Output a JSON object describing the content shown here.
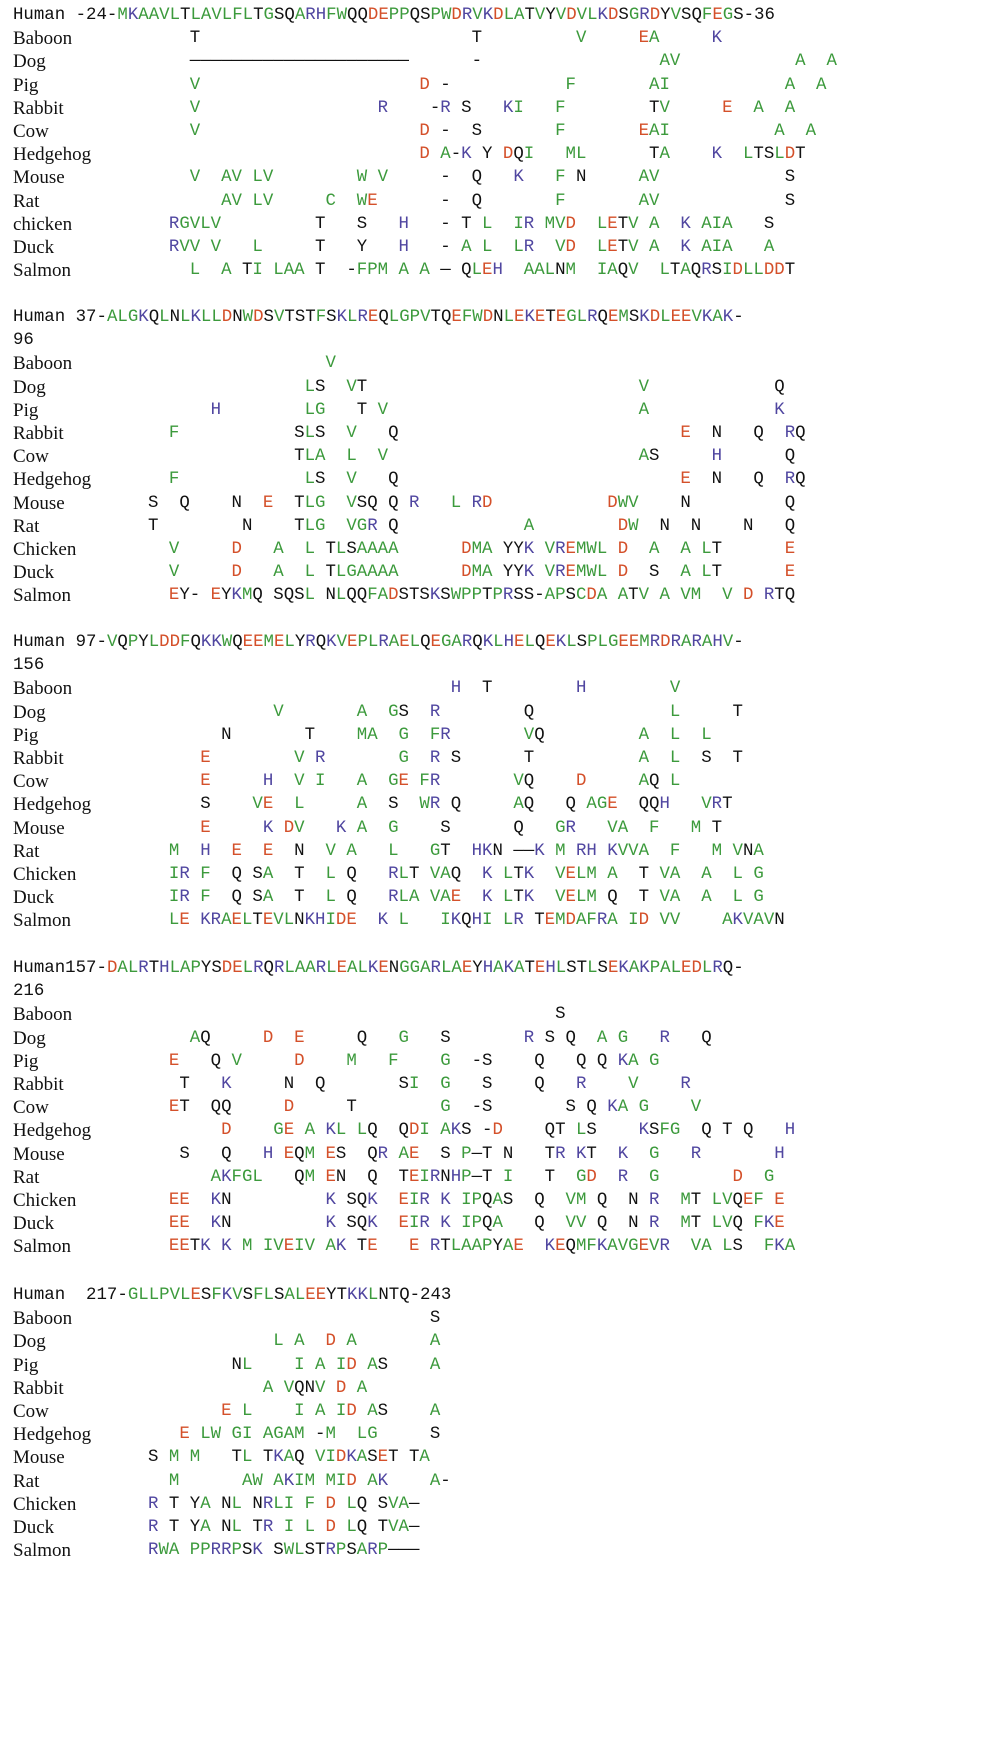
{
  "colors": {
    "hydrophobic": "#3c9a3c",
    "acidic": "#d4502a",
    "basic": "#5046a0",
    "other": "#111111"
  },
  "blocks": [
    {
      "id": "block1",
      "header": {
        "label": "Human -24-",
        "sequence": "MKAAVLTLAVLFLTGSQARHFWQQDEPPQSPWDRVKDLATVYVDVLKDSGRDYVSQFEGS",
        "suffix": "-36"
      },
      "rows": [
        {
          "species": "Baboon",
          "seq": "    T                          T         V     EA     K             "
        },
        {
          "species": "Dog",
          "seq": "    _____________________      -                 AV           A  A  "
        },
        {
          "species": "Pig",
          "seq": "    V                     D -           F       AI           A  A  "
        },
        {
          "species": "Rabbit",
          "seq": "    V                 R    -R S   KI   F        TV     E  A  A  "
        },
        {
          "species": "Cow",
          "seq": "    V                     D -  S       F       EAI          A  A  "
        },
        {
          "species": "Hedgehog",
          "seq": "                          D A-K Y DQI   ML      TA    K  LTSLDT"
        },
        {
          "species": "Mouse",
          "seq": "    V  AV LV        W V     -  Q   K   F N     AV            S  "
        },
        {
          "species": "Rat",
          "seq": "       AV LV     C  WE      -  Q       F       AV            S  "
        },
        {
          "species": "chicken",
          "seq": "  RGVLV         T   S   H   - T L  IR MVD  LETV A  K AIA   S  "
        },
        {
          "species": "Duck",
          "seq": "  RVV V   L     T   Y   H   - A L  LR  VD  LETV A  K AIA   A  "
        },
        {
          "species": "Salmon",
          "seq": "    L  A TI LAA T  -FPM A A — QLEH  AALNM  IAQV  LTAQRSIDLLDDT"
        }
      ]
    },
    {
      "id": "block2",
      "header": {
        "label": "Human 37-",
        "sequence": "ALGKQLNLKLLDNWDSVTSTFSKLREQLGPVTQEFWDNLEKETEGLRQEMSKDLEEVKAK",
        "suffix": "-96"
      },
      "rows": [
        {
          "species": "Baboon",
          "seq": "                 V                                           "
        },
        {
          "species": "Dog",
          "seq": "               LS  VT                          V            Q"
        },
        {
          "species": "Pig",
          "seq": "      H        LG   T V                        A            K"
        },
        {
          "species": "Rabbit",
          "seq": "  F           SLS  V   Q                           E  N   Q  RQ"
        },
        {
          "species": "Cow",
          "seq": "              TLA  L  V                        AS     H      Q"
        },
        {
          "species": "Hedgehog",
          "seq": "  F            LS  V   Q                           E  N   Q  RQ"
        },
        {
          "species": "Mouse",
          "seq": "S  Q    N  E  TLG  VSQ Q R   L RD           DWV    N         Q"
        },
        {
          "species": "Rat",
          "seq": "T        N    TLG  VGR Q            A        DW  N  N    N   Q"
        },
        {
          "species": "Chicken",
          "seq": "  V     D   A  L TLSAAAA      DMA YYK VREMWL D  A  A LT      E"
        },
        {
          "species": "Duck",
          "seq": "  V     D   A  L TLGAAAA      DMA YYK VREMWL D  S  A LT      E"
        },
        {
          "species": "Salmon",
          "seq": "  EY- EYKMQ SQSL NLQQFADSTSKSWPPTPRSS-APSCDA ATV A VM  V D RTQ"
        }
      ]
    },
    {
      "id": "block3",
      "header": {
        "label": "Human 97-",
        "sequence": "VQPYLDDFQKKWQEEMELYRQKVEPLRAELQEGARQKLHELQEKLSPLGEEMRDRARAHV",
        "suffix": "-156"
      },
      "rows": [
        {
          "species": "Baboon",
          "seq": "                             H  T        H        V        "
        },
        {
          "species": "Dog",
          "seq": "            V       A  GS  R        Q             L     T  "
        },
        {
          "species": "Pig",
          "seq": "       N       T    MA  G  FR       VQ         A  L  L     "
        },
        {
          "species": "Rabbit",
          "seq": "     E        V R       G  R S      T          A  L  S  T  "
        },
        {
          "species": "Cow",
          "seq": "     E     H  V I   A  GE FR       VQ    D     AQ L        "
        },
        {
          "species": "Hedgehog",
          "seq": "     S    VE  L     A  S  WR Q     AQ   Q AGE  QQH   VRT   "
        },
        {
          "species": "Mouse",
          "seq": "     E     K DV   K A  G    S      Q   GR   VA  F   M T   "
        },
        {
          "species": "Rat",
          "seq": "  M  H  E  E  N  V A   L   GT  HKN ——K M RH KVVA  F   M VNA"
        },
        {
          "species": "Chicken",
          "seq": "  IR F  Q SA  T  L Q   RLT VAQ  K LTK  VELM A  T VA  A  L G"
        },
        {
          "species": "Duck",
          "seq": "  IR F  Q SA  T  L Q   RLA VAE  K LTK  VELM Q  T VA  A  L G"
        },
        {
          "species": "Salmon",
          "seq": "  LE KRAELTEVLNKHIDE  K L   IKQHI LR TEMDAFRA ID VV    AKVAVN"
        }
      ]
    },
    {
      "id": "block4",
      "header": {
        "label": "Human157-",
        "sequence": "DALRTHLAPYSDELRQRLAARLEALKENGGARLAEYHAKATEHLSTLSEKAKPALEDLRQ",
        "suffix": "-216"
      },
      "rows": [
        {
          "species": "Baboon",
          "seq": "                                       S                    "
        },
        {
          "species": "Dog",
          "seq": "    AQ     D  E     Q   G   S       R S Q  A G   R   Q       "
        },
        {
          "species": "Pig",
          "seq": "  E   Q V     D    M   F    G  -S    Q   Q Q KA G            "
        },
        {
          "species": "Rabbit",
          "seq": "   T   K     N  Q       SI  G   S    Q   R    V    R         "
        },
        {
          "species": "Cow",
          "seq": "  ET  QQ     D     T        G  -S       S Q KA G    V        "
        },
        {
          "species": "Hedgehog",
          "seq": "       D    GE A KL LQ  QDI AKS -D    QT LS    KSFG  Q T Q   H"
        },
        {
          "species": "Mouse",
          "seq": "   S   Q   H EQM ES  QR AE  S P—T N   TR KT  K  G   R       H"
        },
        {
          "species": "Rat",
          "seq": "      AKFGL   QM EN  Q  TEIRNHP—T I   T  GD  R  G       D  G"
        },
        {
          "species": "Chicken",
          "seq": "  EE  KN         K SQK  EIR K IPQAS  Q  VM Q  N R  MT LVQEF E"
        },
        {
          "species": "Duck",
          "seq": "  EE  KN         K SQK  EIR K IPQA   Q  VV Q  N R  MT LVQ FKE"
        },
        {
          "species": "Salmon",
          "seq": "  EETK K M IVEIV AK TE   E RTLAAPYAE  KEQMFKAVGEVR  VA LS  FKA"
        }
      ]
    },
    {
      "id": "block5",
      "header": {
        "label": "Human  217-",
        "sequence": "GLLPVLESFKVSFLSALEEYTKKLNTQ",
        "suffix": "-243"
      },
      "rows": [
        {
          "species": "Baboon",
          "seq": "                           S"
        },
        {
          "species": "Dog",
          "seq": "            L A  D A       A"
        },
        {
          "species": "Pig",
          "seq": "        NL    I A ID AS    A"
        },
        {
          "species": "Rabbit",
          "seq": "           A VQNV D A       "
        },
        {
          "species": "Cow",
          "seq": "       E L    I A ID AS    A"
        },
        {
          "species": "Hedgehog",
          "seq": "   E LW GI AGAM -M  LG     S"
        },
        {
          "species": "Mouse",
          "seq": "S M M   TL TKAQ VIDKASET TA "
        },
        {
          "species": "Rat",
          "seq": "  M      AW AKIM MID AK    A-"
        },
        {
          "species": "Chicken",
          "seq": "R T YA NL NRLI F D LQ SVA—"
        },
        {
          "species": "Duck",
          "seq": "R T YA NL TR I L D LQ TVA—"
        },
        {
          "species": "Salmon",
          "seq": "RWA PPRRPSK SWLSTRPSARP———"
        }
      ]
    }
  ]
}
